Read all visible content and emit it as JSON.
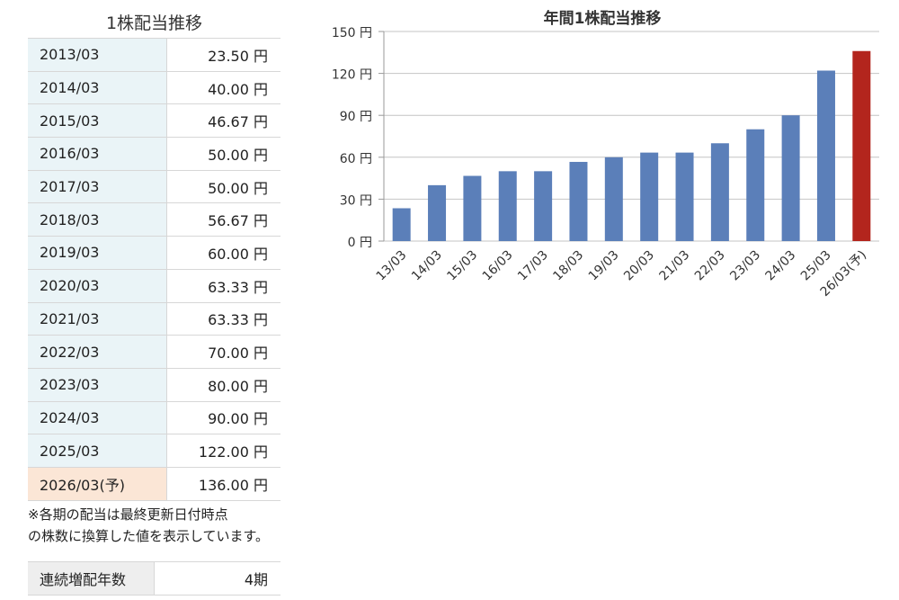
{
  "table": {
    "title": "1株配当推移",
    "rows": [
      {
        "period": "2013/03",
        "amount": "23.50 円"
      },
      {
        "period": "2014/03",
        "amount": "40.00 円"
      },
      {
        "period": "2015/03",
        "amount": "46.67 円"
      },
      {
        "period": "2016/03",
        "amount": "50.00 円"
      },
      {
        "period": "2017/03",
        "amount": "50.00 円"
      },
      {
        "period": "2018/03",
        "amount": "56.67 円"
      },
      {
        "period": "2019/03",
        "amount": "60.00 円"
      },
      {
        "period": "2020/03",
        "amount": "63.33 円"
      },
      {
        "period": "2021/03",
        "amount": "63.33 円"
      },
      {
        "period": "2022/03",
        "amount": "70.00 円"
      },
      {
        "period": "2023/03",
        "amount": "80.00 円"
      },
      {
        "period": "2024/03",
        "amount": "90.00 円"
      },
      {
        "period": "2025/03",
        "amount": "122.00 円"
      },
      {
        "period": "2026/03(予)",
        "amount": "136.00 円"
      }
    ],
    "note_line1": "※各期の配当は最終更新日付時点",
    "note_line2": "の株数に換算した値を表示しています。",
    "streak_label": "連続増配年数",
    "streak_value": "4期"
  },
  "colors": {
    "actual_bar": "#5b7fb9",
    "forecast_bar": "#b3251d",
    "period_cell": "#eaf4f7",
    "forecast_cell": "#fbe6d6"
  },
  "chart_data": {
    "type": "bar",
    "title": "年間1株配当推移",
    "categories": [
      "13/03",
      "14/03",
      "15/03",
      "16/03",
      "17/03",
      "18/03",
      "19/03",
      "20/03",
      "21/03",
      "22/03",
      "23/03",
      "24/03",
      "25/03",
      "26/03(予)"
    ],
    "values": [
      23.5,
      40,
      46.67,
      50,
      50,
      56.67,
      60,
      63.33,
      63.33,
      70,
      80,
      90,
      122,
      136
    ],
    "forecast_index": 13,
    "ylim": [
      0,
      150
    ],
    "yticks": [
      0,
      30,
      60,
      90,
      120,
      150
    ],
    "ytick_labels": [
      "0 円",
      "30 円",
      "60 円",
      "90 円",
      "120 円",
      "150 円"
    ],
    "grid": true,
    "xlabel": "",
    "ylabel": ""
  }
}
